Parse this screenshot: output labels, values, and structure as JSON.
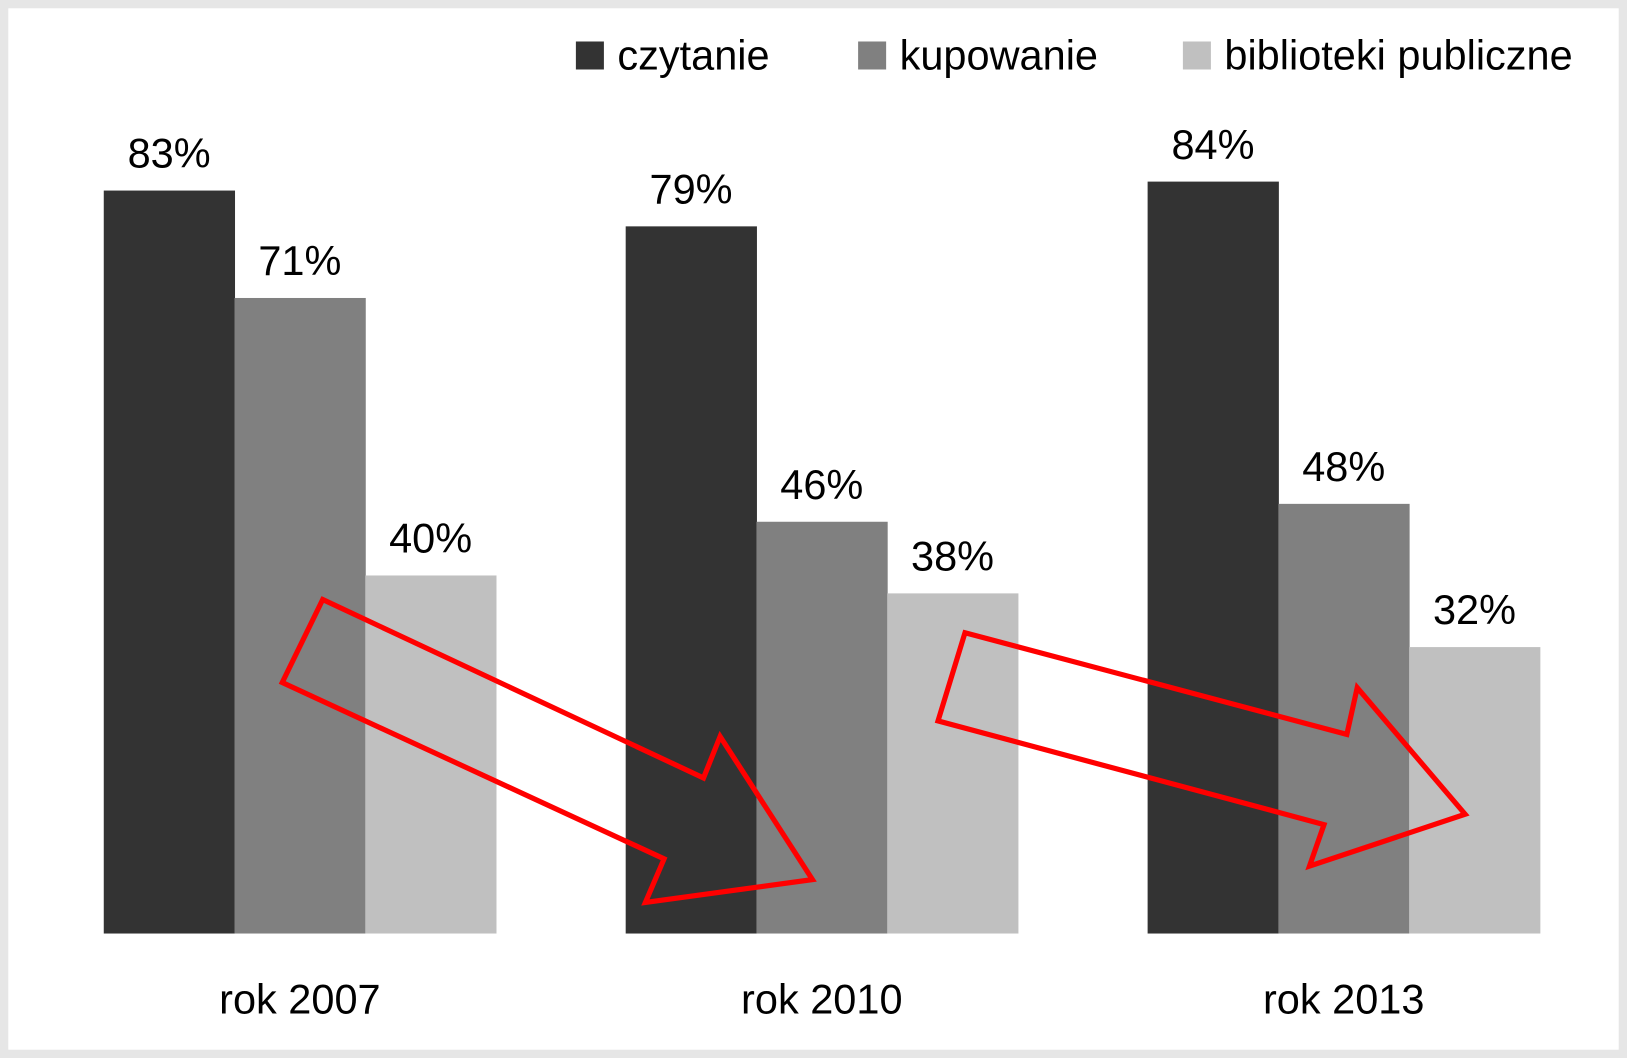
{
  "chart_data": {
    "type": "bar",
    "categories": [
      "rok 2007",
      "rok 2010",
      "rok 2013"
    ],
    "series": [
      {
        "name": "czytanie",
        "color": "#333333",
        "values": [
          83,
          79,
          84
        ],
        "value_labels": [
          "83%",
          "79%",
          "84%"
        ]
      },
      {
        "name": "kupowanie",
        "color": "#808080",
        "values": [
          71,
          46,
          48
        ],
        "value_labels": [
          "71%",
          "46%",
          "48%"
        ]
      },
      {
        "name": "biblioteki publiczne",
        "color": "#c0c0c0",
        "values": [
          40,
          38,
          32
        ],
        "value_labels": [
          "40%",
          "38%",
          "32%"
        ]
      }
    ],
    "legend": "top-right"
  }
}
